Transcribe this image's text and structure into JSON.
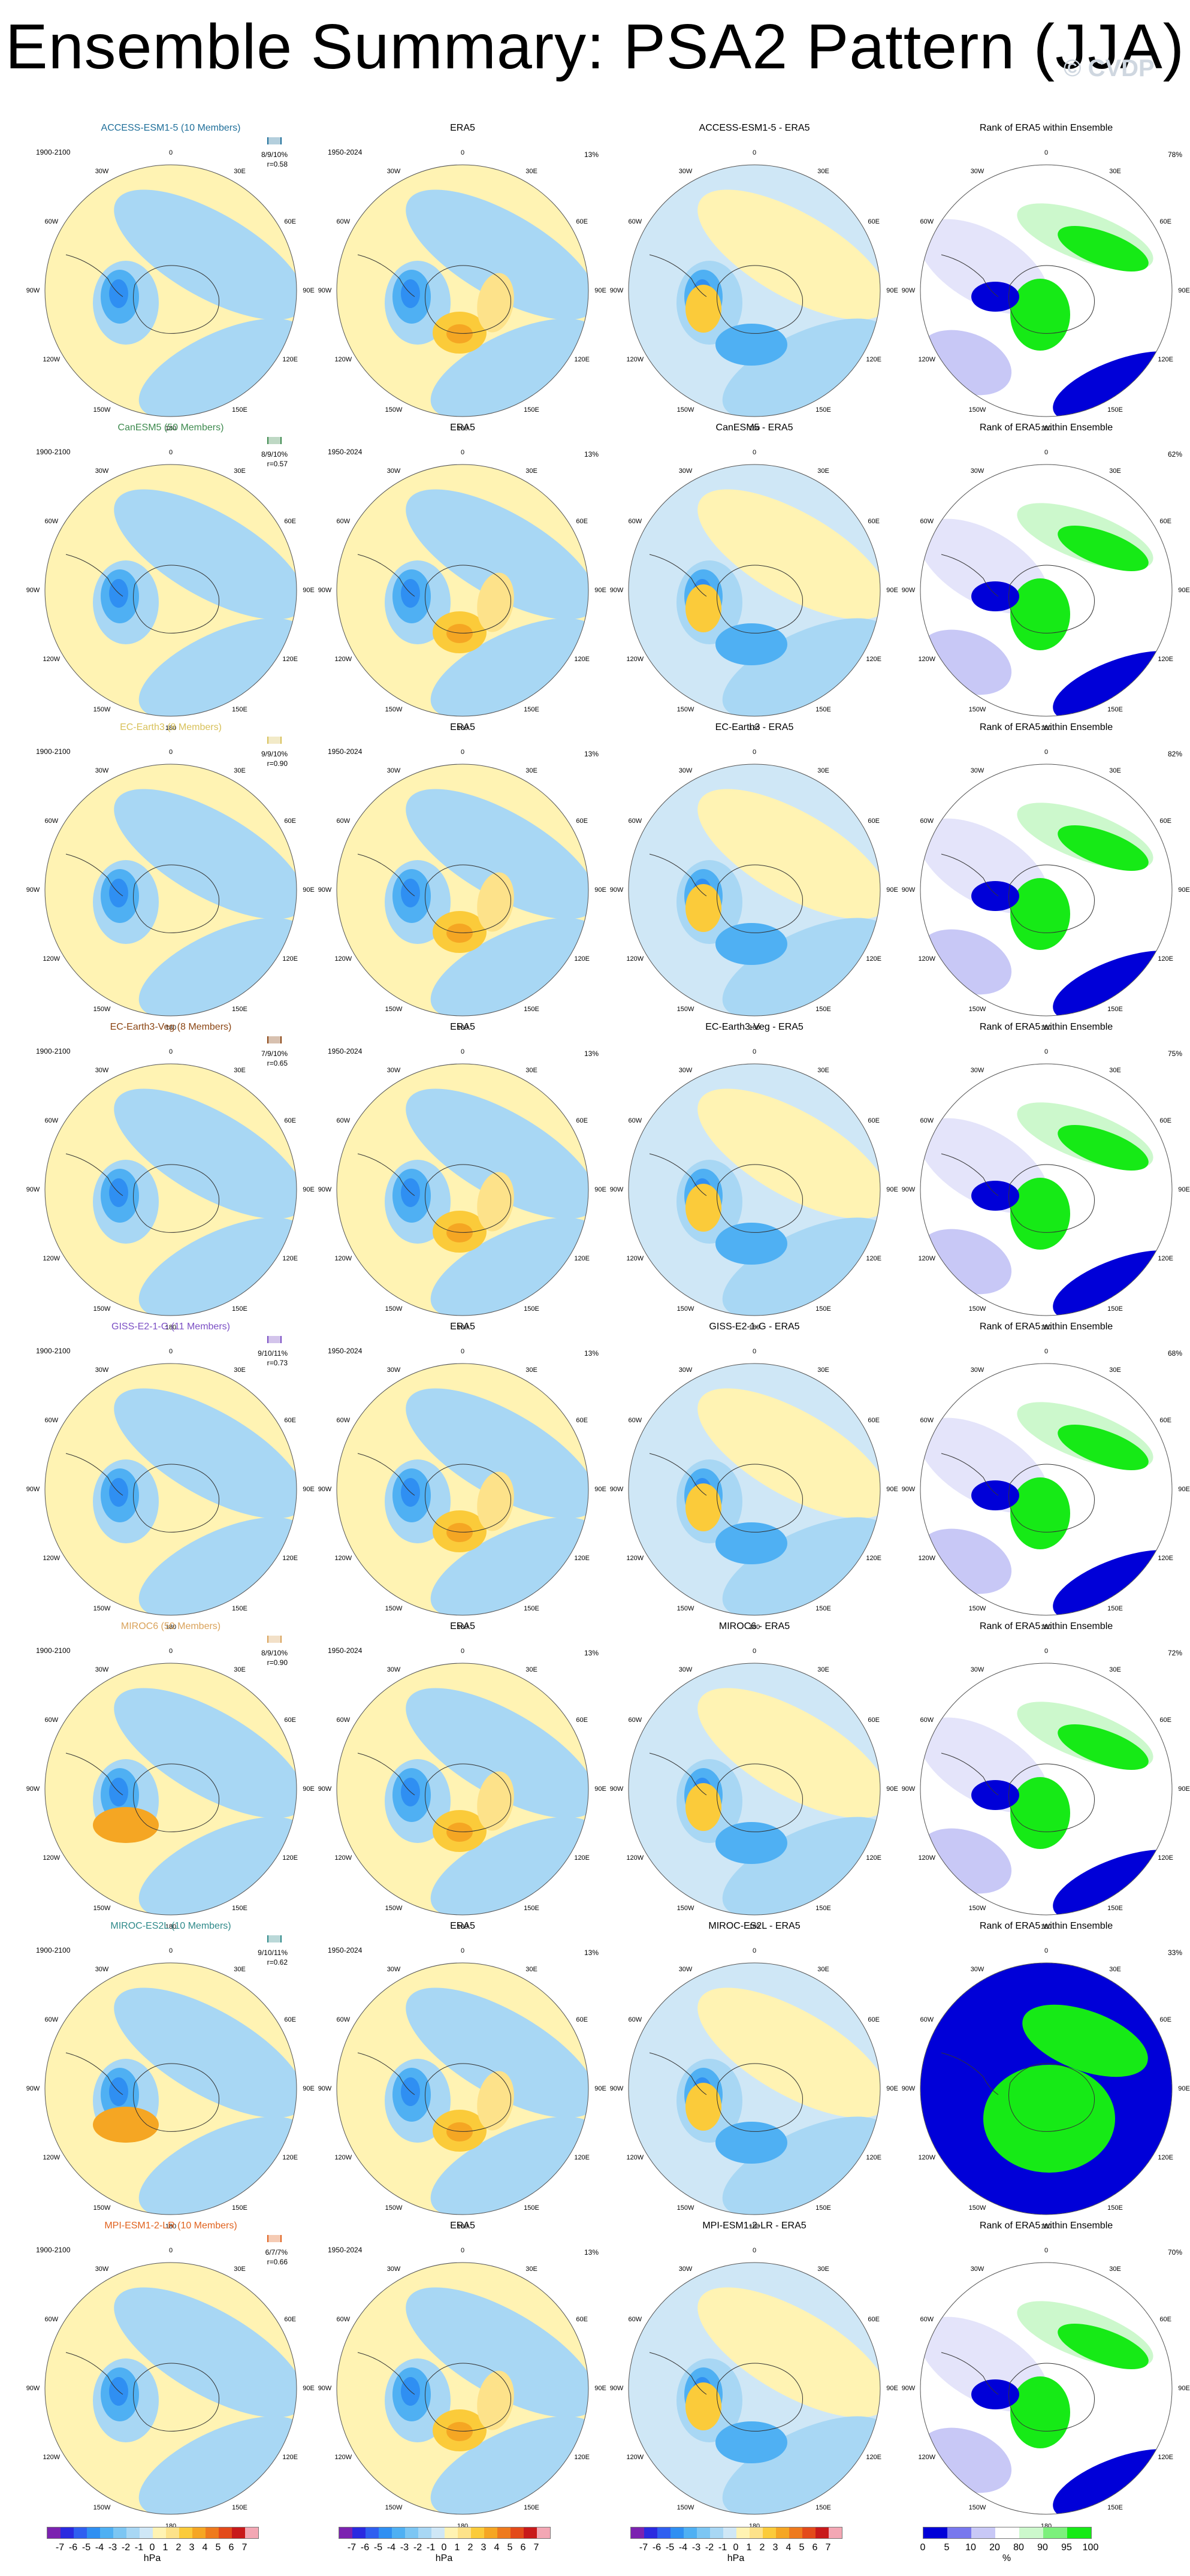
{
  "title": "Ensemble Summary: PSA2 Pattern (JJA)",
  "watermark": "© CVDP",
  "period_model": "1900-2100",
  "period_obs": "1950-2024",
  "obs_title": "ERA5",
  "obs_pct": "13%",
  "rank_title": "Rank of ERA5 within Ensemble",
  "ticks": {
    "t0": "0",
    "t30e": "30E",
    "t60e": "60E",
    "t90e": "90E",
    "t120e": "120E",
    "t150e": "150E",
    "t180": "180",
    "t150w": "150W",
    "t120w": "120W",
    "t90w": "90W",
    "t60w": "60W",
    "t30w": "30W"
  },
  "models": [
    {
      "title": "ACCESS-ESM1-5 (10 Members)",
      "diff": "ACCESS-ESM1-5 - ERA5",
      "stat1": "8/9/10%",
      "stat2": "r=0.58",
      "rank": "78%",
      "color": "#1f6f9a"
    },
    {
      "title": "CanESM5 (50 Members)",
      "diff": "CanESM5 - ERA5",
      "stat1": "8/9/10%",
      "stat2": "r=0.57",
      "rank": "62%",
      "color": "#3d8a4e"
    },
    {
      "title": "EC-Earth3 (8 Members)",
      "diff": "EC-Earth3 - ERA5",
      "stat1": "9/9/10%",
      "stat2": "r=0.90",
      "rank": "82%",
      "color": "#d8c15a"
    },
    {
      "title": "EC-Earth3-Veg (8 Members)",
      "diff": "EC-Earth3-Veg - ERA5",
      "stat1": "7/9/10%",
      "stat2": "r=0.65",
      "rank": "75%",
      "color": "#8b4513"
    },
    {
      "title": "GISS-E2-1-G (11 Members)",
      "diff": "GISS-E2-1-G - ERA5",
      "stat1": "9/10/11%",
      "stat2": "r=0.73",
      "rank": "68%",
      "color": "#7b4fc4"
    },
    {
      "title": "MIROC6 (50 Members)",
      "diff": "MIROC6 - ERA5",
      "stat1": "8/9/10%",
      "stat2": "r=0.90",
      "rank": "72%",
      "color": "#d9a25a"
    },
    {
      "title": "MIROC-ES2L (10 Members)",
      "diff": "MIROC-ES2L - ERA5",
      "stat1": "9/10/11%",
      "stat2": "r=0.62",
      "rank": "33%",
      "color": "#2f8a8a"
    },
    {
      "title": "MPI-ESM1-2-LR (10 Members)",
      "diff": "MPI-ESM1-2-LR - ERA5",
      "stat1": "6/7/7%",
      "stat2": "r=0.66",
      "rank": "70%",
      "color": "#e0621e"
    }
  ],
  "legend_hpa": {
    "ticks": [
      "-7",
      "-6",
      "-5",
      "-4",
      "-3",
      "-2",
      "-1",
      "0",
      "1",
      "2",
      "3",
      "4",
      "5",
      "6",
      "7"
    ],
    "unit": "hPa",
    "colors": [
      "#7b22b0",
      "#2a2ae0",
      "#2f5ff0",
      "#2f8ff2",
      "#4fb0f3",
      "#7cc6f3",
      "#a8d7f4",
      "#cfe7f6",
      "#fff3b3",
      "#fde28a",
      "#fbcb3a",
      "#f5a623",
      "#ee7a1d",
      "#e34a1a",
      "#c8191a",
      "#f3a7b4"
    ]
  },
  "legend_rank": {
    "ticks": [
      "0",
      "5",
      "10",
      "20",
      "80",
      "90",
      "95",
      "100"
    ],
    "unit": "%",
    "colors": [
      "#0000d8",
      "#7878ee",
      "#c8c8f6",
      "#ffffff",
      "#ccf8cc",
      "#7cf07c",
      "#16ea16"
    ]
  }
}
